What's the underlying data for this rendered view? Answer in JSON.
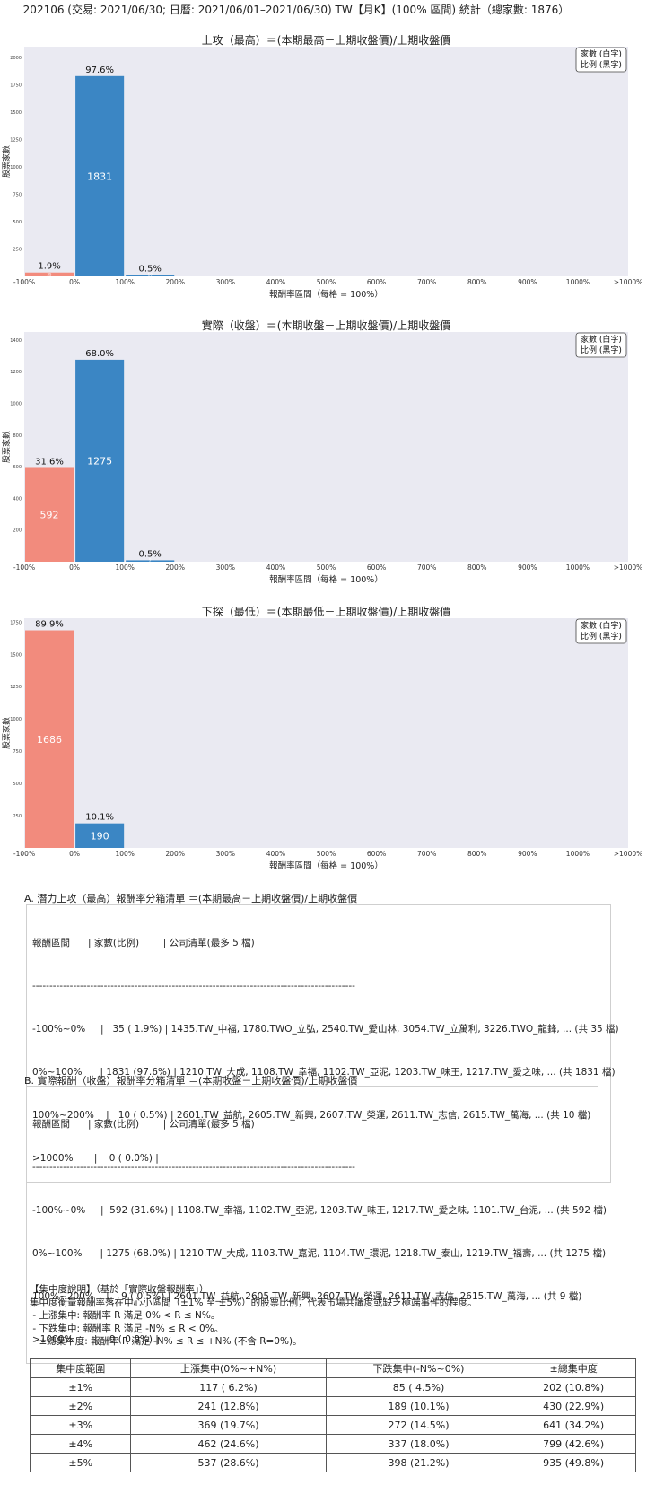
{
  "main_title": "202106 (交易: 2021/06/30; 日曆: 2021/06/01–2021/06/30) TW【月K】(100% 區間) 統計（總家數: 1876）",
  "legend": {
    "line1": "家數 (白字)",
    "line2": "比例 (黑字)"
  },
  "colors": {
    "positive": "#3b86c4",
    "negative": "#f28b7d",
    "panel": "#eaeaf2"
  },
  "chart_data": [
    {
      "type": "bar",
      "title": "上攻（最高）＝(本期最高－上期收盤價)/上期收盤價",
      "xlabel": "報酬率區間（每格 = 100%）",
      "ylabel": "股票家數",
      "categories": [
        "-100%~0%",
        "0%~100%",
        "100%~200%"
      ],
      "values": [
        35,
        1831,
        10
      ],
      "percent_labels": [
        "1.9%",
        "97.6%",
        "0.5%"
      ],
      "count_labels": [
        "35",
        "1831",
        "10"
      ],
      "ylim": [
        0,
        2100
      ],
      "yticks": [
        "0",
        "250",
        "500",
        "750",
        "1000",
        "1250",
        "1500",
        "1750",
        "2000"
      ]
    },
    {
      "type": "bar",
      "title": "實際（收盤）＝(本期收盤－上期收盤價)/上期收盤價",
      "xlabel": "報酬率區間（每格 = 100%）",
      "ylabel": "股票家數",
      "categories": [
        "-100%~0%",
        "0%~100%",
        "100%~200%"
      ],
      "values": [
        592,
        1275,
        9
      ],
      "percent_labels": [
        "31.6%",
        "68.0%",
        "0.5%"
      ],
      "count_labels": [
        "592",
        "1275",
        "9"
      ],
      "ylim": [
        0,
        1450
      ],
      "yticks": [
        "0",
        "200",
        "400",
        "600",
        "800",
        "1000",
        "1200",
        "1400"
      ]
    },
    {
      "type": "bar",
      "title": "下探（最低）＝(本期最低－上期收盤價)/上期收盤價",
      "xlabel": "報酬率區間（每格 = 100%）",
      "ylabel": "股票家數",
      "categories": [
        "-100%~0%",
        "0%~100%"
      ],
      "values": [
        1686,
        190
      ],
      "percent_labels": [
        "89.9%",
        "10.1%"
      ],
      "count_labels": [
        "1686",
        "190"
      ],
      "ylim": [
        0,
        1780
      ],
      "yticks": [
        "0",
        "250",
        "500",
        "750",
        "1000",
        "1250",
        "1500",
        "1750"
      ]
    }
  ],
  "x_ticks": [
    "-100%",
    "0%",
    "100%",
    "200%",
    "300%",
    "400%",
    "500%",
    "600%",
    "700%",
    "800%",
    "900%",
    "1000%",
    ">1000%"
  ],
  "list_a": {
    "title": "A. 潛力上攻（最高）報酬率分箱清單 ＝(本期最高－上期收盤價)/上期收盤價",
    "header": "報酬區間      | 家數(比例)        | 公司清單(最多 5 檔)",
    "divider": "-----------------------------------------------------------------------------------------------",
    "rows": [
      "-100%~0%     |   35 ( 1.9%) | 1435.TW_中福, 1780.TWO_立弘, 2540.TW_愛山林, 3054.TW_立萬利, 3226.TWO_龍鋒, ... (共 35 檔)",
      "0%~100%      | 1831 (97.6%) | 1210.TW_大成, 1108.TW_幸福, 1102.TW_亞泥, 1203.TW_味王, 1217.TW_愛之味, ... (共 1831 檔)",
      "100%~200%    |   10 ( 0.5%) | 2601.TW_益航, 2605.TW_新興, 2607.TW_榮運, 2611.TW_志信, 2615.TW_萬海, ... (共 10 檔)",
      ">1000%       |    0 ( 0.0%) |"
    ]
  },
  "list_b": {
    "title": "B. 實際報酬（收盤）報酬率分箱清單 ＝(本期收盤－上期收盤價)/上期收盤價",
    "header": "報酬區間      | 家數(比例)        | 公司清單(最多 5 檔)",
    "divider": "-----------------------------------------------------------------------------------------------",
    "rows": [
      "-100%~0%     |  592 (31.6%) | 1108.TW_幸福, 1102.TW_亞泥, 1203.TW_味王, 1217.TW_愛之味, 1101.TW_台泥, ... (共 592 檔)",
      "0%~100%      | 1275 (68.0%) | 1210.TW_大成, 1103.TW_嘉泥, 1104.TW_環泥, 1218.TW_泰山, 1219.TW_福壽, ... (共 1275 檔)",
      "100%~200%    |    9 ( 0.5%) | 2601.TW_益航, 2605.TW_新興, 2607.TW_榮運, 2611.TW_志信, 2615.TW_萬海, ... (共 9 檔)",
      ">1000%       |    0 ( 0.0%) |"
    ]
  },
  "concentration": {
    "lines": [
      "【集中度說明】（基於「實際收盤報酬率」）",
      "集中度衡量報酬率落在中心小區間（±1% 至 ±5%）的股票比例，代表市場共識度或缺乏極端事件的程度。",
      " - 上漲集中: 報酬率 R 滿足 0% < R ≤ N%。",
      " - 下跌集中: 報酬率 R 滿足 -N% ≤ R < 0%。",
      " - ±總集中度: 報酬率 R 滿足 -N% ≤ R ≤ +N% (不含 R=0%)。"
    ],
    "headers": [
      "集中度範圍",
      "上漲集中(0%~+N%)",
      "下跌集中(-N%~0%)",
      "±總集中度"
    ],
    "rows": [
      [
        "±1%",
        "117 ( 6.2%)",
        "85 ( 4.5%)",
        "202 (10.8%)"
      ],
      [
        "±2%",
        "241 (12.8%)",
        "189 (10.1%)",
        "430 (22.9%)"
      ],
      [
        "±3%",
        "369 (19.7%)",
        "272 (14.5%)",
        "641 (34.2%)"
      ],
      [
        "±4%",
        "462 (24.6%)",
        "337 (18.0%)",
        "799 (42.6%)"
      ],
      [
        "±5%",
        "537 (28.6%)",
        "398 (21.2%)",
        "935 (49.8%)"
      ]
    ]
  }
}
